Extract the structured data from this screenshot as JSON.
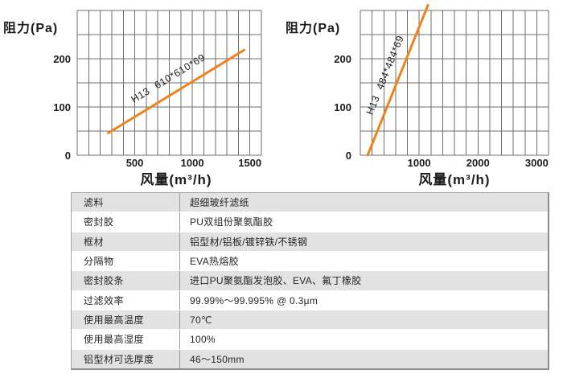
{
  "colors": {
    "accent_line": "#f0821e",
    "grid": "#6e6e6e",
    "table_row_alt": "#e2e2e2",
    "table_border": "#9b9b9b",
    "text": "#262626"
  },
  "chart_data": [
    {
      "type": "line",
      "title": "",
      "ylabel": "阻力(Pa)",
      "xlabel": "风量(m³/h)",
      "xlim": [
        0,
        1600
      ],
      "ylim": [
        0,
        300
      ],
      "x_grid_step": 100,
      "y_grid_step": 50,
      "x_tick_labels": [
        500,
        1000,
        1500
      ],
      "y_tick_labels": [
        0,
        100,
        200
      ],
      "grid": true,
      "legend_position": "none",
      "series": [
        {
          "name": "H13 610*610*69",
          "x": [
            270,
            1450
          ],
          "y": [
            46,
            218
          ],
          "color": "#f0821e"
        }
      ]
    },
    {
      "type": "line",
      "title": "",
      "ylabel": "阻力(Pa)",
      "xlabel": "风量(m³/h)",
      "xlim": [
        0,
        3200
      ],
      "ylim": [
        0,
        300
      ],
      "x_grid_step": 200,
      "y_grid_step": 50,
      "x_tick_labels": [
        1000,
        2000,
        3000
      ],
      "y_tick_labels": [
        0,
        100,
        200
      ],
      "grid": true,
      "legend_position": "none",
      "series": [
        {
          "name": "H13 484*484*69",
          "x": [
            125,
            1150
          ],
          "y": [
            0,
            311
          ],
          "color": "#f0821e"
        }
      ]
    }
  ],
  "table": {
    "rows": [
      {
        "label": "滤料",
        "value": "超细玻纤滤纸"
      },
      {
        "label": "密封胶",
        "value": "PU双组份聚氨酯胶"
      },
      {
        "label": "框材",
        "value": "铝型材/铝板/镀锌铁/不锈钢"
      },
      {
        "label": "分隔物",
        "value": "EVA热熔胶"
      },
      {
        "label": "密封胶条",
        "value": "进口PU聚氨酯发泡胶、EVA、氟丁橡胶"
      },
      {
        "label": "过滤效率",
        "value": "99.99%～99.995% @ 0.3μm"
      },
      {
        "label": "使用最高温度",
        "value": "70℃"
      },
      {
        "label": "使用最高湿度",
        "value": "100%"
      },
      {
        "label": "铝型材可选厚度",
        "value": "46～150mm"
      }
    ]
  }
}
